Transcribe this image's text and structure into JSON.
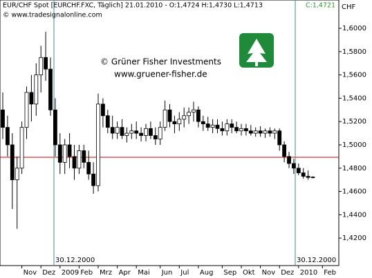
{
  "header": {
    "title": "EUR/CHF Spot [EURCHF.FXC, Täglich] 21.01.2010 - O:1,4724 H:1,4730 L:1,4713",
    "close": "C:1,4721",
    "source": "© www.tradesignalonline.com"
  },
  "watermark": {
    "company": "© Grüner Fisher Investments",
    "url": "www.gruener-fisher.de"
  },
  "chart_data": {
    "type": "candlestick",
    "y_axis_label": "CHF",
    "categories": [
      null,
      null,
      null,
      null,
      "Nov",
      null,
      null,
      null,
      "Dez",
      null,
      null,
      null,
      "2009",
      null,
      null,
      null,
      "Feb",
      null,
      null,
      null,
      "Mrz",
      null,
      null,
      null,
      "Apr",
      null,
      null,
      null,
      "Mai",
      null,
      null,
      null,
      null,
      "Jun",
      null,
      null,
      null,
      "Jul",
      null,
      null,
      null,
      "Aug",
      null,
      null,
      null,
      null,
      "Sep",
      null,
      null,
      null,
      "Okt",
      null,
      null,
      null,
      "Nov",
      null,
      null,
      null,
      "Dez",
      null,
      null,
      null,
      "2010",
      null,
      null,
      null,
      null,
      "Feb"
    ],
    "open": [
      1.53,
      1.515,
      1.5,
      1.47,
      1.48,
      1.515,
      1.545,
      1.535,
      1.56,
      1.575,
      1.565,
      1.53,
      1.5,
      1.485,
      1.5,
      1.49,
      1.48,
      1.495,
      1.485,
      1.475,
      1.465,
      1.535,
      1.525,
      1.515,
      1.51,
      1.515,
      1.508,
      1.51,
      1.512,
      1.51,
      1.508,
      1.514,
      1.508,
      1.505,
      1.515,
      1.53,
      1.52,
      1.518,
      1.522,
      1.525,
      1.528,
      1.53,
      1.52,
      1.518,
      1.515,
      1.517,
      1.514,
      1.512,
      1.518,
      1.515,
      1.512,
      1.514,
      1.512,
      1.51,
      1.512,
      1.51,
      1.512,
      1.51,
      1.512,
      1.5,
      1.49,
      1.484,
      1.48,
      1.476,
      1.473,
      1.4724,
      null,
      null
    ],
    "high": [
      1.545,
      1.525,
      1.51,
      1.49,
      1.52,
      1.55,
      1.56,
      1.57,
      1.585,
      1.597,
      1.575,
      1.54,
      1.51,
      1.505,
      1.51,
      1.5,
      1.5,
      1.5,
      1.495,
      1.485,
      1.544,
      1.54,
      1.53,
      1.525,
      1.52,
      1.522,
      1.515,
      1.518,
      1.52,
      1.515,
      1.518,
      1.52,
      1.515,
      1.52,
      1.538,
      1.535,
      1.525,
      1.528,
      1.532,
      1.532,
      1.537,
      1.533,
      1.525,
      1.524,
      1.522,
      1.522,
      1.52,
      1.522,
      1.522,
      1.52,
      1.518,
      1.518,
      1.517,
      1.515,
      1.516,
      1.514,
      1.515,
      1.514,
      1.514,
      1.503,
      1.494,
      1.488,
      1.484,
      1.48,
      1.478,
      1.473,
      null,
      null
    ],
    "low": [
      1.505,
      1.49,
      1.445,
      1.428,
      1.475,
      1.505,
      1.52,
      1.525,
      1.545,
      1.555,
      1.525,
      1.49,
      1.475,
      1.475,
      1.48,
      1.47,
      1.475,
      1.48,
      1.47,
      1.458,
      1.46,
      1.515,
      1.51,
      1.505,
      1.505,
      1.505,
      1.502,
      1.505,
      1.505,
      1.503,
      1.503,
      1.505,
      1.5,
      1.5,
      1.512,
      1.515,
      1.51,
      1.512,
      1.515,
      1.518,
      1.52,
      1.515,
      1.512,
      1.512,
      1.51,
      1.51,
      1.508,
      1.508,
      1.51,
      1.51,
      1.508,
      1.508,
      1.508,
      1.507,
      1.507,
      1.506,
      1.507,
      1.505,
      1.495,
      1.485,
      1.48,
      1.475,
      1.474,
      1.471,
      1.47,
      1.4713,
      null,
      null
    ],
    "close": [
      1.515,
      1.5,
      1.47,
      1.48,
      1.515,
      1.545,
      1.535,
      1.56,
      1.575,
      1.565,
      1.53,
      1.5,
      1.485,
      1.5,
      1.49,
      1.48,
      1.495,
      1.485,
      1.475,
      1.465,
      1.535,
      1.525,
      1.515,
      1.51,
      1.515,
      1.508,
      1.51,
      1.512,
      1.51,
      1.508,
      1.514,
      1.508,
      1.505,
      1.515,
      1.53,
      1.52,
      1.518,
      1.522,
      1.525,
      1.528,
      1.53,
      1.52,
      1.518,
      1.515,
      1.517,
      1.514,
      1.512,
      1.518,
      1.515,
      1.512,
      1.514,
      1.512,
      1.51,
      1.512,
      1.51,
      1.512,
      1.51,
      1.512,
      1.5,
      1.49,
      1.484,
      1.48,
      1.476,
      1.473,
      1.472,
      1.4721,
      null,
      null
    ],
    "ylim": [
      1.3964,
      1.6243
    ],
    "yticks": [
      {
        "value": 1.42,
        "label": "1,4200"
      },
      {
        "value": 1.44,
        "label": "1,4400"
      },
      {
        "value": 1.46,
        "label": "1,4600"
      },
      {
        "value": 1.48,
        "label": "1,4800"
      },
      {
        "value": 1.5,
        "label": "1,5000"
      },
      {
        "value": 1.52,
        "label": "1,5200"
      },
      {
        "value": 1.54,
        "label": "1,5400"
      },
      {
        "value": 1.56,
        "label": "1,5600"
      },
      {
        "value": 1.58,
        "label": "1,5800"
      },
      {
        "value": 1.6,
        "label": "1,6000"
      }
    ],
    "reference_line": 1.4893,
    "reference_color": "#cc0000",
    "annotations": [
      "30.12.2000",
      "30.12.2000"
    ],
    "up_color": "#ffffff",
    "down_color": "#000000"
  }
}
